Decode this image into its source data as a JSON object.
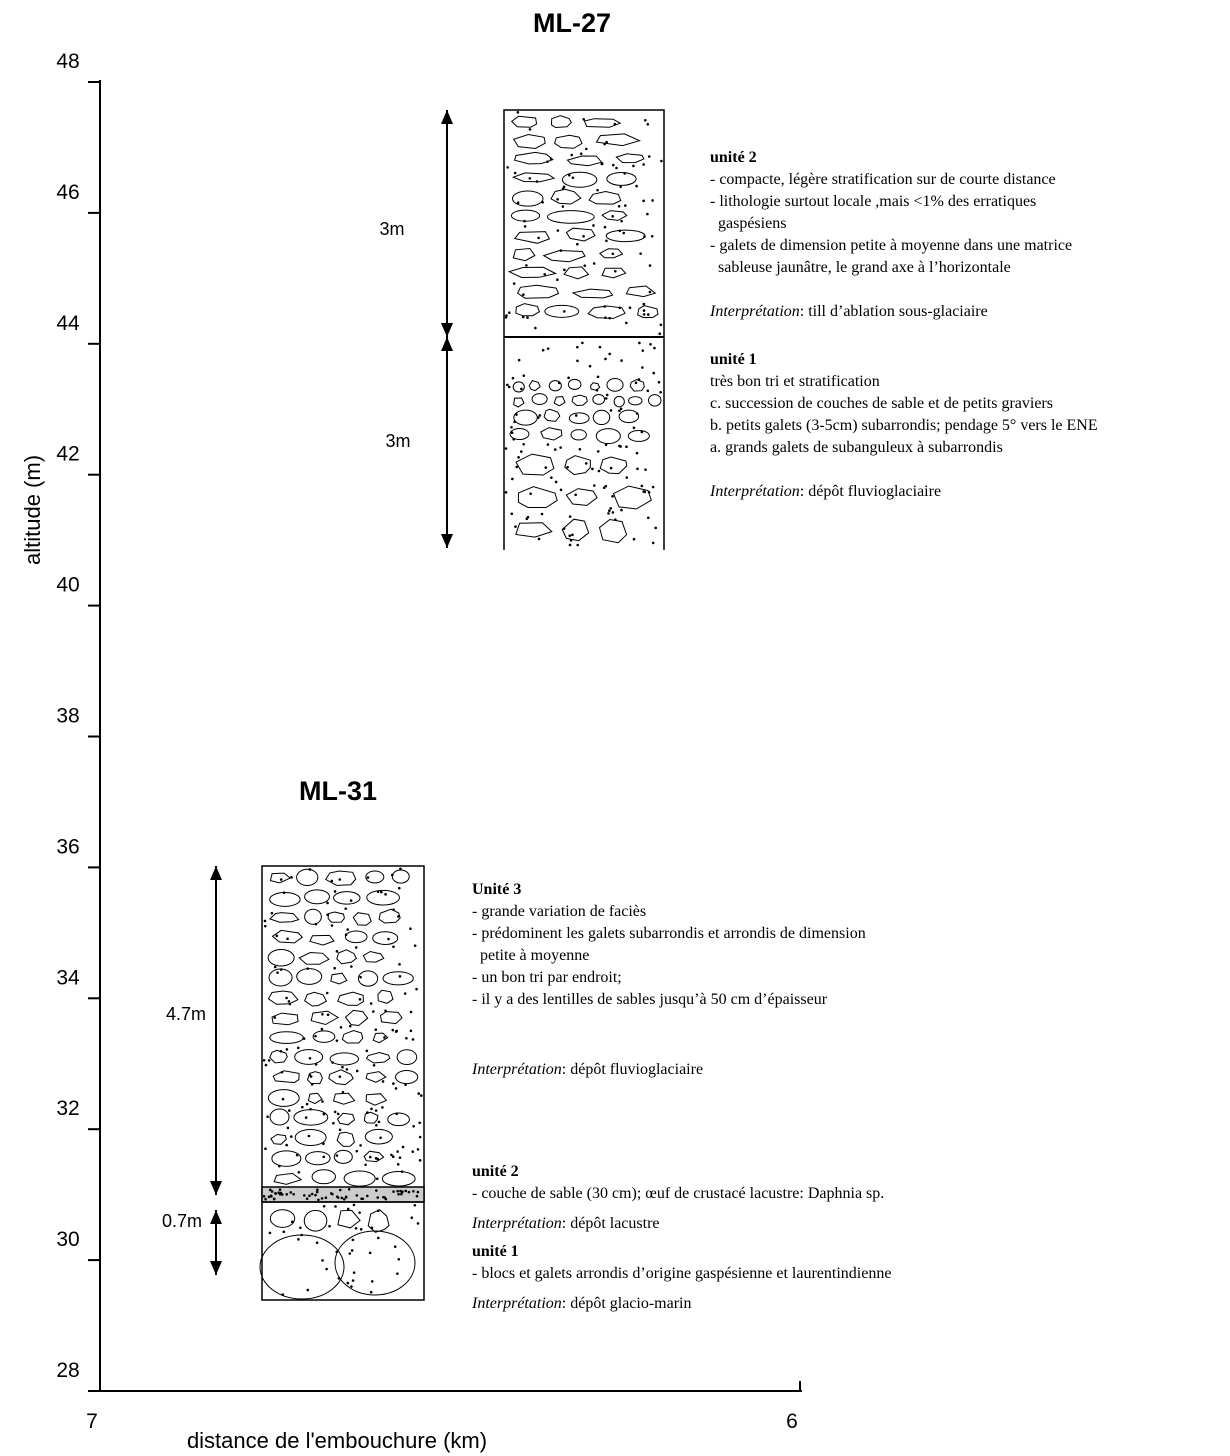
{
  "axes": {
    "y_label": "altitude (m)",
    "x_label": "distance de l'embouchure (km)",
    "yticks": [
      48,
      46,
      44,
      42,
      40,
      38,
      36,
      34,
      32,
      30,
      28
    ],
    "xticks": [
      7,
      6
    ]
  },
  "sections": [
    {
      "name": "ML-27",
      "thickness_labels": [
        "3m",
        "3m"
      ],
      "units": [
        {
          "title": "unité 2",
          "lines": [
            "- compacte, légère stratification sur de courte distance",
            "- lithologie surtout locale ,mais <1% des erratiques",
            "  gaspésiens",
            "- galets de dimension petite à moyenne dans une matrice",
            "  sableuse jaunâtre, le grand axe à l’horizontale"
          ],
          "interpretation_label": "Interprétation",
          "interpretation": ": till d’ablation sous-glaciaire"
        },
        {
          "title": "unité 1",
          "lines": [
            "très bon tri et stratification",
            "c. succession de couches de sable et de petits graviers",
            "b. petits galets (3-5cm) subarrondis; pendage 5° vers le ENE",
            "a. grands galets de subanguleux à subarrondis"
          ],
          "interpretation_label": "Interprétation",
          "interpretation": ": dépôt fluvioglaciaire"
        }
      ]
    },
    {
      "name": "ML-31",
      "thickness_labels": [
        "4.7m",
        "0.7m"
      ],
      "units": [
        {
          "title": "Unité 3",
          "lines": [
            "- grande variation de faciès",
            "- prédominent les galets subarrondis et arrondis de dimension",
            "  petite à moyenne",
            "- un bon tri par endroit;",
            "- il y a des lentilles de sables jusqu’à 50 cm d’épaisseur"
          ],
          "interpretation_label": "Interprétation",
          "interpretation": ": dépôt fluvioglaciaire"
        },
        {
          "title": "unité 2",
          "lines": [
            "- couche de sable (30 cm); œuf de crustacé lacustre: Daphnia sp."
          ],
          "interpretation_label": "Interprétation",
          "interpretation": ": dépôt lacustre"
        },
        {
          "title": "unité 1",
          "lines": [
            "- blocs et galets arrondis d’origine gaspésienne et laurentindienne"
          ],
          "interpretation_label": "Interprétation",
          "interpretation": ": dépôt glacio-marin"
        }
      ]
    }
  ]
}
